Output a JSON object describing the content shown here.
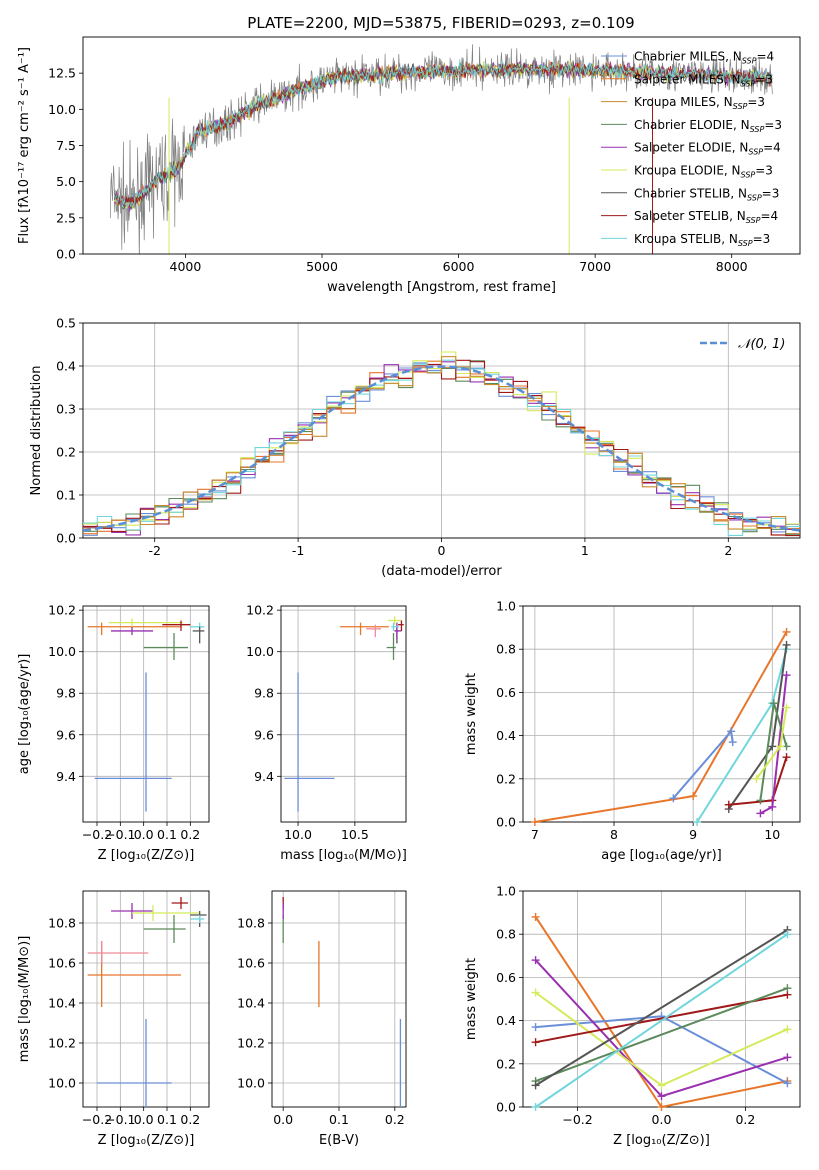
{
  "title": "PLATE=2200, MJD=53875, FIBERID=0293, z=0.109",
  "colors": {
    "Chabrier MILES": "#6a8fd8",
    "Salpeter MILES": "#e8762a",
    "Kroupa MILES": "#c98a2e",
    "Chabrier ELODIE": "#5c8a5c",
    "Salpeter ELODIE": "#9a30b0",
    "Kroupa ELODIE": "#d4ea5a",
    "Chabrier STELIB": "#555555",
    "Salpeter STELIB": "#a01818",
    "Kroupa STELIB": "#70d6dc",
    "pink": "#f08a9a",
    "spectrum": "#808080"
  },
  "chart_data": [
    {
      "id": "spectrum",
      "type": "line",
      "xlabel": "wavelength [Angstrom, rest frame]",
      "ylabel": "Flux [fλ10⁻¹⁷ erg cm⁻² s⁻¹ A⁻¹]",
      "xlim": [
        3250,
        8500
      ],
      "ylim": [
        0,
        15
      ],
      "xticks": [
        4000,
        5000,
        6000,
        7000,
        8000
      ],
      "yticks": [
        0.0,
        2.5,
        5.0,
        7.5,
        10.0,
        12.5
      ],
      "continuum_x": [
        3450,
        3600,
        3800,
        3950,
        4100,
        4300,
        4500,
        4800,
        5100,
        5500,
        6000,
        6500,
        7000,
        7500,
        8000,
        8300
      ],
      "continuum_y": [
        4.0,
        3.4,
        5.2,
        6.0,
        8.5,
        9.0,
        10.2,
        11.3,
        12.2,
        12.5,
        12.7,
        12.8,
        12.7,
        12.5,
        12.3,
        12.2
      ],
      "legend": [
        {
          "name": "Chabrier MILES",
          "nssp": "4"
        },
        {
          "name": "Salpeter MILES",
          "nssp": "3"
        },
        {
          "name": "Kroupa MILES",
          "nssp": "3"
        },
        {
          "name": "Chabrier ELODIE",
          "nssp": "3"
        },
        {
          "name": "Salpeter ELODIE",
          "nssp": "4"
        },
        {
          "name": "Kroupa ELODIE",
          "nssp": "3"
        },
        {
          "name": "Chabrier STELIB",
          "nssp": "3"
        },
        {
          "name": "Salpeter STELIB",
          "nssp": "4"
        },
        {
          "name": "Kroupa STELIB",
          "nssp": "3"
        }
      ]
    },
    {
      "id": "residuals",
      "type": "histogram",
      "xlabel": "(data-model)/error",
      "ylabel": "Normed distribution",
      "xlim": [
        -2.5,
        2.5
      ],
      "ylim": [
        0,
        0.5
      ],
      "xticks": [
        -2,
        -1,
        0,
        1,
        2
      ],
      "yticks": [
        0.0,
        0.1,
        0.2,
        0.3,
        0.4,
        0.5
      ],
      "grid": true,
      "bin_width": 0.1,
      "reference": {
        "label": "𝒩(0, 1)",
        "mean": 0,
        "sigma": 1,
        "legend": "top-right"
      }
    },
    {
      "id": "age_vs_Z",
      "type": "errorbar",
      "xlabel": "Z [log₁₀(Z/Z⊙)]",
      "ylabel": "age  [log₁₀(age/yr)]",
      "xlim": [
        -0.26,
        0.28
      ],
      "ylim": [
        9.18,
        10.22
      ],
      "xticks": [
        -0.2,
        -0.1,
        0.0,
        0.1,
        0.2
      ],
      "xticklabels": [
        "−0.2",
        "−0.1",
        "0.0",
        "0.1",
        "0.2"
      ],
      "yticks": [
        9.4,
        9.6,
        9.8,
        10.0,
        10.2
      ],
      "yticklabels": [
        "9.4",
        "9.6",
        "9.8",
        "10.0",
        "10.2"
      ],
      "points": [
        {
          "s": "Chabrier MILES",
          "x": 0.01,
          "y": 9.39,
          "xerr": [
            0.22,
            0.11
          ],
          "yerr": [
            0.16,
            0.51
          ]
        },
        {
          "s": "Salpeter MILES",
          "x": -0.18,
          "y": 10.12,
          "xerr": [
            0.06,
            0.34
          ],
          "yerr": [
            0.04,
            0.02
          ]
        },
        {
          "s": "Kroupa ELODIE",
          "x": -0.05,
          "y": 10.14,
          "xerr": [
            0.1,
            0.22
          ],
          "yerr": [
            0.02,
            0.02
          ]
        },
        {
          "s": "Salpeter ELODIE",
          "x": -0.05,
          "y": 10.1,
          "xerr": [
            0.09,
            0.09
          ],
          "yerr": [
            0.02,
            0.02
          ]
        },
        {
          "s": "Chabrier ELODIE",
          "x": 0.13,
          "y": 10.02,
          "xerr": [
            0.13,
            0.06
          ],
          "yerr": [
            0.06,
            0.07
          ]
        },
        {
          "s": "Salpeter STELIB",
          "x": 0.16,
          "y": 10.13,
          "xerr": [
            0.08,
            0.04
          ],
          "yerr": [
            0.03,
            0.02
          ]
        },
        {
          "s": "Kroupa STELIB",
          "x": 0.24,
          "y": 10.12,
          "xerr": [
            0.04,
            0.02
          ],
          "yerr": [
            0.02,
            0.02
          ]
        },
        {
          "s": "Chabrier STELIB",
          "x": 0.24,
          "y": 10.1,
          "xerr": [
            0.03,
            0.02
          ],
          "yerr": [
            0.06,
            0.02
          ]
        }
      ]
    },
    {
      "id": "age_vs_mass",
      "type": "errorbar",
      "xlabel": "mass [log₁₀(M/M⊙)]",
      "ylabel": "",
      "xlim": [
        9.85,
        10.95
      ],
      "ylim": [
        9.18,
        10.22
      ],
      "xticks": [
        10.0,
        10.5
      ],
      "xticklabels": [
        "10.0",
        "10.5"
      ],
      "yticks": [
        9.4,
        9.6,
        9.8,
        10.0,
        10.2
      ],
      "yticklabels": [
        "9.4",
        "9.6",
        "9.8",
        "10.0",
        "10.2"
      ],
      "points": [
        {
          "s": "Chabrier MILES",
          "x": 10.0,
          "y": 9.39,
          "xerr": [
            0.12,
            0.32
          ],
          "yerr": [
            0.16,
            0.51
          ]
        },
        {
          "s": "Salpeter MILES",
          "x": 10.55,
          "y": 10.12,
          "xerr": [
            0.18,
            0.25
          ],
          "yerr": [
            0.04,
            0.02
          ]
        },
        {
          "s": "pink",
          "x": 10.68,
          "y": 10.11,
          "xerr": [
            0.08,
            0.05
          ],
          "yerr": [
            0.04,
            0.02
          ]
        },
        {
          "s": "Chabrier ELODIE",
          "x": 10.84,
          "y": 10.02,
          "xerr": [
            0.06,
            0.02
          ],
          "yerr": [
            0.06,
            0.07
          ]
        },
        {
          "s": "Kroupa ELODIE",
          "x": 10.85,
          "y": 10.15,
          "xerr": [
            0.06,
            0.06
          ],
          "yerr": [
            0.02,
            0.02
          ]
        },
        {
          "s": "Chabrier STELIB",
          "x": 10.87,
          "y": 10.1,
          "xerr": [
            0.02,
            0.02
          ],
          "yerr": [
            0.06,
            0.02
          ]
        },
        {
          "s": "Salpeter ELODIE",
          "x": 10.87,
          "y": 10.1,
          "xerr": [
            0.02,
            0.04
          ],
          "yerr": [
            0.04,
            0.04
          ]
        },
        {
          "s": "Kroupa STELIB",
          "x": 10.84,
          "y": 10.12,
          "xerr": [
            0.02,
            0.05
          ],
          "yerr": [
            0.02,
            0.02
          ]
        },
        {
          "s": "Salpeter STELIB",
          "x": 10.91,
          "y": 10.13,
          "xerr": [
            0.03,
            0.02
          ],
          "yerr": [
            0.03,
            0.02
          ]
        }
      ]
    },
    {
      "id": "weight_vs_age",
      "type": "line",
      "xlabel": "age  [log₁₀(age/yr)]",
      "ylabel": "mass weight",
      "xlim": [
        6.85,
        10.35
      ],
      "ylim": [
        0,
        1
      ],
      "xticks": [
        7,
        8,
        9,
        10
      ],
      "xticklabels": [
        "7",
        "8",
        "9",
        "10"
      ],
      "yticks": [
        0,
        0.2,
        0.4,
        0.6,
        0.8,
        1.0
      ],
      "yticklabels": [
        "0.0",
        "0.2",
        "0.4",
        "0.6",
        "0.8",
        "1.0"
      ],
      "series": [
        {
          "s": "Salpeter MILES",
          "x": [
            7.0,
            9.0,
            10.18
          ],
          "y": [
            0.0,
            0.12,
            0.88
          ]
        },
        {
          "s": "Chabrier MILES",
          "x": [
            8.75,
            9.48,
            9.5
          ],
          "y": [
            0.11,
            0.42,
            0.37
          ]
        },
        {
          "s": "Kroupa STELIB",
          "x": [
            9.05,
            10.0,
            10.18
          ],
          "y": [
            0.0,
            0.55,
            0.8
          ]
        },
        {
          "s": "Chabrier STELIB",
          "x": [
            9.45,
            10.0,
            10.18
          ],
          "y": [
            0.06,
            0.35,
            0.82
          ]
        },
        {
          "s": "Salpeter STELIB",
          "x": [
            9.45,
            10.0,
            10.18
          ],
          "y": [
            0.08,
            0.1,
            0.3
          ]
        },
        {
          "s": "Salpeter ELODIE",
          "x": [
            9.85,
            10.0,
            10.18
          ],
          "y": [
            0.04,
            0.07,
            0.68
          ]
        },
        {
          "s": "Chabrier ELODIE",
          "x": [
            9.85,
            10.02,
            10.18
          ],
          "y": [
            0.1,
            0.55,
            0.35
          ]
        },
        {
          "s": "Kroupa ELODIE",
          "x": [
            9.8,
            10.1,
            10.18
          ],
          "y": [
            0.2,
            0.35,
            0.53
          ]
        }
      ]
    },
    {
      "id": "mass_vs_Z",
      "type": "errorbar",
      "xlabel": "Z [log₁₀(Z/Z⊙)]",
      "ylabel": "mass [log₁₀(M/M⊙)]",
      "xlim": [
        -0.26,
        0.28
      ],
      "ylim": [
        9.88,
        10.96
      ],
      "xticks": [
        -0.2,
        -0.1,
        0.0,
        0.1,
        0.2
      ],
      "xticklabels": [
        "−0.2",
        "−0.1",
        "0.0",
        "0.1",
        "0.2"
      ],
      "yticks": [
        10.0,
        10.2,
        10.4,
        10.6,
        10.8
      ],
      "yticklabels": [
        "10.0",
        "10.2",
        "10.4",
        "10.6",
        "10.8"
      ],
      "points": [
        {
          "s": "Chabrier MILES",
          "x": 0.01,
          "y": 10.0,
          "xerr": [
            0.21,
            0.11
          ],
          "yerr": [
            0.12,
            0.32
          ]
        },
        {
          "s": "Salpeter MILES",
          "x": -0.18,
          "y": 10.54,
          "xerr": [
            0.06,
            0.34
          ],
          "yerr": [
            0.16,
            0.17
          ]
        },
        {
          "s": "pink",
          "x": -0.18,
          "y": 10.65,
          "xerr": [
            0.06,
            0.2
          ],
          "yerr": [
            0.05,
            0.06
          ]
        },
        {
          "s": "Salpeter ELODIE",
          "x": -0.05,
          "y": 10.86,
          "xerr": [
            0.09,
            0.09
          ],
          "yerr": [
            0.04,
            0.04
          ]
        },
        {
          "s": "Kroupa ELODIE",
          "x": 0.04,
          "y": 10.85,
          "xerr": [
            0.09,
            0.2
          ],
          "yerr": [
            0.04,
            0.04
          ]
        },
        {
          "s": "Chabrier ELODIE",
          "x": 0.13,
          "y": 10.77,
          "xerr": [
            0.13,
            0.05
          ],
          "yerr": [
            0.07,
            0.07
          ]
        },
        {
          "s": "Salpeter STELIB",
          "x": 0.16,
          "y": 10.9,
          "xerr": [
            0.04,
            0.03
          ],
          "yerr": [
            0.03,
            0.03
          ]
        },
        {
          "s": "Chabrier STELIB",
          "x": 0.24,
          "y": 10.84,
          "xerr": [
            0.04,
            0.03
          ],
          "yerr": [
            0.06,
            0.02
          ]
        },
        {
          "s": "Kroupa STELIB",
          "x": 0.24,
          "y": 10.82,
          "xerr": [
            0.04,
            0.02
          ],
          "yerr": [
            0.02,
            0.02
          ]
        }
      ]
    },
    {
      "id": "mass_vs_ebv",
      "type": "errorbar",
      "xlabel": "E(B-V)",
      "ylabel": "",
      "xlim": [
        -0.02,
        0.22
      ],
      "ylim": [
        9.88,
        10.96
      ],
      "xticks": [
        0.0,
        0.1,
        0.2
      ],
      "xticklabels": [
        "0.0",
        "0.1",
        "0.2"
      ],
      "yticks": [
        10.0,
        10.2,
        10.4,
        10.6,
        10.8
      ],
      "yticklabels": [
        "10.0",
        "10.2",
        "10.4",
        "10.6",
        "10.8"
      ],
      "points": [
        {
          "s": "Chabrier MILES",
          "x": 0.21,
          "y": 10.0,
          "xerr": [
            0,
            0
          ],
          "yerr": [
            0.12,
            0.32
          ]
        },
        {
          "s": "Salpeter MILES",
          "x": 0.064,
          "y": 10.54,
          "xerr": [
            0,
            0
          ],
          "yerr": [
            0.16,
            0.17
          ]
        },
        {
          "s": "Salpeter STELIB",
          "x": 0.0,
          "y": 10.9,
          "xerr": [
            0,
            0
          ],
          "yerr": [
            0.03,
            0.03
          ]
        },
        {
          "s": "Chabrier ELODIE",
          "x": 0.0,
          "y": 10.77,
          "xerr": [
            0,
            0
          ],
          "yerr": [
            0.07,
            0.07
          ]
        },
        {
          "s": "Salpeter ELODIE",
          "x": 0.0,
          "y": 10.86,
          "xerr": [
            0,
            0
          ],
          "yerr": [
            0.04,
            0.04
          ]
        }
      ]
    },
    {
      "id": "weight_vs_Z",
      "type": "line",
      "xlabel": "Z [log₁₀(Z/Z⊙)]",
      "ylabel": "mass weight",
      "xlim": [
        -0.33,
        0.33
      ],
      "ylim": [
        0,
        1
      ],
      "xticks": [
        -0.2,
        0.0,
        0.2
      ],
      "xticklabels": [
        "−0.2",
        "0.0",
        "0.2"
      ],
      "yticks": [
        0,
        0.2,
        0.4,
        0.6,
        0.8,
        1.0
      ],
      "yticklabels": [
        "0.0",
        "0.2",
        "0.4",
        "0.6",
        "0.8",
        "1.0"
      ],
      "series": [
        {
          "s": "Salpeter MILES",
          "x": [
            -0.3,
            0.0,
            0.3
          ],
          "y": [
            0.88,
            0.0,
            0.12
          ]
        },
        {
          "s": "Chabrier MILES",
          "x": [
            -0.3,
            0.0,
            0.3
          ],
          "y": [
            0.37,
            0.42,
            0.11
          ]
        },
        {
          "s": "Salpeter ELODIE",
          "x": [
            -0.3,
            0.0,
            0.3
          ],
          "y": [
            0.68,
            0.05,
            0.23
          ]
        },
        {
          "s": "Kroupa ELODIE",
          "x": [
            -0.3,
            0.0,
            0.3
          ],
          "y": [
            0.53,
            0.1,
            0.36
          ]
        },
        {
          "s": "Salpeter STELIB",
          "x": [
            -0.3,
            0.3
          ],
          "y": [
            0.3,
            0.52
          ]
        },
        {
          "s": "Chabrier ELODIE",
          "x": [
            -0.3,
            0.3
          ],
          "y": [
            0.12,
            0.55
          ]
        },
        {
          "s": "Chabrier STELIB",
          "x": [
            -0.3,
            0.3
          ],
          "y": [
            0.1,
            0.82
          ]
        },
        {
          "s": "Kroupa STELIB",
          "x": [
            -0.3,
            0.3
          ],
          "y": [
            0.0,
            0.8
          ]
        }
      ]
    }
  ]
}
